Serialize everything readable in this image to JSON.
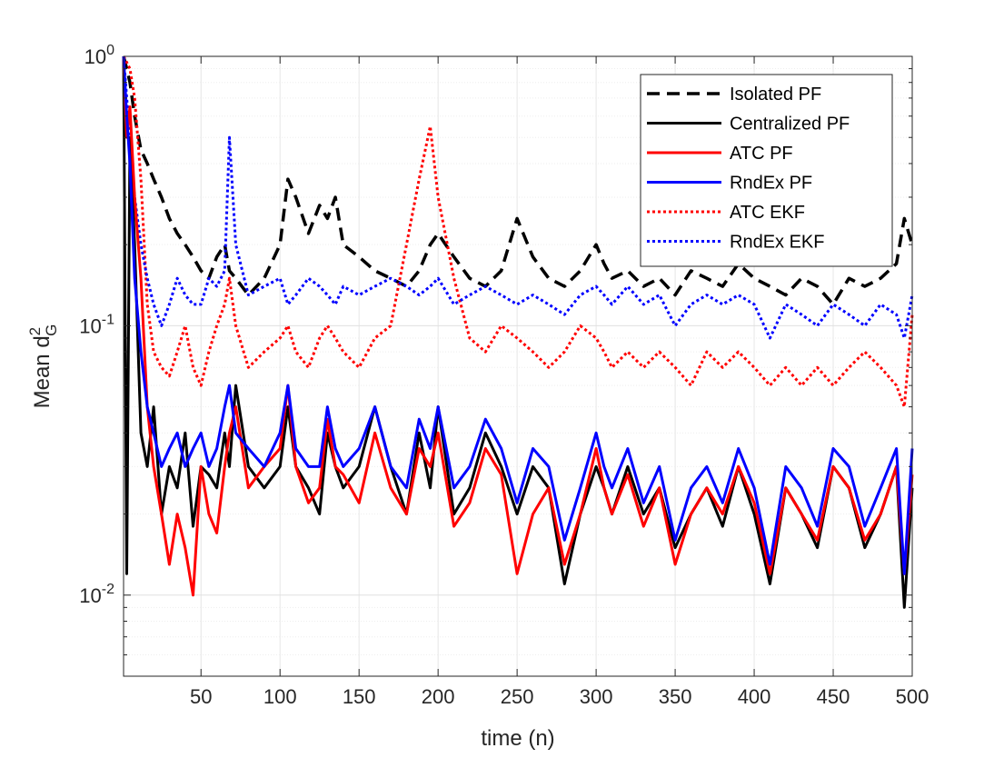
{
  "chart_data": {
    "type": "line",
    "title": "",
    "xlabel": "time (n)",
    "ylabel": "Mean d",
    "ylabel_superscript": "2",
    "ylabel_subscript": "G",
    "yscale": "log",
    "xlim": [
      1,
      500
    ],
    "ylim": [
      0.005,
      1
    ],
    "grid": true,
    "x_ticks": [
      50,
      100,
      150,
      200,
      250,
      300,
      350,
      400,
      450,
      500
    ],
    "x_tick_labels": [
      "50",
      "100",
      "150",
      "200",
      "250",
      "300",
      "350",
      "400",
      "450",
      "500"
    ],
    "y_ticks": [
      0.01,
      0.1,
      1
    ],
    "y_tick_bases": [
      "10",
      "10",
      "10"
    ],
    "y_tick_exponents": [
      "-2",
      "-1",
      "0"
    ],
    "legend_location": "top-right",
    "x": [
      1,
      3,
      5,
      8,
      12,
      16,
      20,
      25,
      30,
      35,
      40,
      45,
      50,
      55,
      60,
      65,
      68,
      72,
      80,
      90,
      100,
      105,
      110,
      118,
      125,
      130,
      135,
      140,
      150,
      160,
      170,
      180,
      188,
      195,
      200,
      210,
      220,
      230,
      240,
      250,
      260,
      270,
      280,
      290,
      300,
      305,
      310,
      320,
      330,
      340,
      350,
      360,
      370,
      380,
      390,
      400,
      410,
      420,
      430,
      440,
      450,
      460,
      470,
      480,
      490,
      495,
      500
    ],
    "series": [
      {
        "name": "Isolated PF",
        "color": "#000000",
        "style": "dashed",
        "values": [
          1.0,
          0.9,
          0.8,
          0.6,
          0.45,
          0.4,
          0.35,
          0.3,
          0.25,
          0.22,
          0.2,
          0.18,
          0.16,
          0.15,
          0.18,
          0.2,
          0.16,
          0.15,
          0.13,
          0.15,
          0.2,
          0.35,
          0.3,
          0.22,
          0.28,
          0.25,
          0.3,
          0.2,
          0.18,
          0.16,
          0.15,
          0.14,
          0.16,
          0.2,
          0.22,
          0.18,
          0.15,
          0.14,
          0.16,
          0.25,
          0.18,
          0.15,
          0.14,
          0.16,
          0.2,
          0.17,
          0.15,
          0.16,
          0.14,
          0.15,
          0.13,
          0.16,
          0.15,
          0.14,
          0.17,
          0.15,
          0.14,
          0.13,
          0.15,
          0.14,
          0.12,
          0.15,
          0.14,
          0.15,
          0.17,
          0.25,
          0.2
        ]
      },
      {
        "name": "Centralized PF",
        "color": "#000000",
        "style": "solid",
        "values": [
          1.0,
          0.012,
          0.5,
          0.2,
          0.04,
          0.03,
          0.05,
          0.02,
          0.03,
          0.025,
          0.04,
          0.018,
          0.03,
          0.028,
          0.025,
          0.04,
          0.03,
          0.06,
          0.03,
          0.025,
          0.03,
          0.05,
          0.03,
          0.025,
          0.02,
          0.04,
          0.03,
          0.025,
          0.03,
          0.05,
          0.03,
          0.02,
          0.04,
          0.025,
          0.05,
          0.02,
          0.025,
          0.04,
          0.03,
          0.02,
          0.03,
          0.025,
          0.011,
          0.02,
          0.03,
          0.025,
          0.02,
          0.03,
          0.02,
          0.025,
          0.015,
          0.02,
          0.025,
          0.018,
          0.03,
          0.02,
          0.011,
          0.025,
          0.02,
          0.015,
          0.03,
          0.025,
          0.015,
          0.02,
          0.03,
          0.009,
          0.025
        ]
      },
      {
        "name": "ATC PF",
        "color": "#ff0000",
        "style": "solid",
        "values": [
          1.0,
          0.5,
          0.65,
          0.3,
          0.15,
          0.05,
          0.03,
          0.02,
          0.013,
          0.02,
          0.015,
          0.01,
          0.03,
          0.02,
          0.017,
          0.03,
          0.04,
          0.05,
          0.025,
          0.03,
          0.035,
          0.06,
          0.03,
          0.022,
          0.025,
          0.045,
          0.03,
          0.028,
          0.022,
          0.04,
          0.025,
          0.02,
          0.035,
          0.03,
          0.04,
          0.018,
          0.022,
          0.035,
          0.028,
          0.012,
          0.02,
          0.025,
          0.013,
          0.02,
          0.035,
          0.025,
          0.02,
          0.028,
          0.018,
          0.025,
          0.013,
          0.02,
          0.025,
          0.02,
          0.03,
          0.022,
          0.012,
          0.025,
          0.02,
          0.016,
          0.03,
          0.025,
          0.016,
          0.02,
          0.03,
          0.012,
          0.028
        ]
      },
      {
        "name": "RndEx PF",
        "color": "#0000ff",
        "style": "solid",
        "values": [
          1.0,
          0.6,
          0.4,
          0.15,
          0.08,
          0.05,
          0.04,
          0.03,
          0.035,
          0.04,
          0.03,
          0.035,
          0.04,
          0.03,
          0.035,
          0.05,
          0.06,
          0.04,
          0.035,
          0.03,
          0.04,
          0.06,
          0.035,
          0.03,
          0.03,
          0.05,
          0.035,
          0.03,
          0.035,
          0.05,
          0.03,
          0.025,
          0.045,
          0.035,
          0.05,
          0.025,
          0.03,
          0.045,
          0.035,
          0.022,
          0.035,
          0.03,
          0.016,
          0.025,
          0.04,
          0.03,
          0.025,
          0.035,
          0.022,
          0.03,
          0.016,
          0.025,
          0.03,
          0.022,
          0.035,
          0.025,
          0.013,
          0.03,
          0.025,
          0.018,
          0.035,
          0.03,
          0.018,
          0.025,
          0.035,
          0.012,
          0.035
        ]
      },
      {
        "name": "ATC EKF",
        "color": "#ff0000",
        "style": "dotted",
        "values": [
          1.0,
          0.95,
          0.9,
          0.7,
          0.35,
          0.12,
          0.08,
          0.07,
          0.065,
          0.08,
          0.1,
          0.07,
          0.06,
          0.08,
          0.1,
          0.12,
          0.15,
          0.1,
          0.07,
          0.08,
          0.09,
          0.1,
          0.08,
          0.07,
          0.09,
          0.1,
          0.09,
          0.08,
          0.07,
          0.09,
          0.1,
          0.2,
          0.35,
          0.55,
          0.3,
          0.15,
          0.09,
          0.08,
          0.1,
          0.09,
          0.08,
          0.07,
          0.08,
          0.1,
          0.09,
          0.08,
          0.07,
          0.08,
          0.07,
          0.08,
          0.07,
          0.06,
          0.08,
          0.07,
          0.08,
          0.07,
          0.06,
          0.07,
          0.06,
          0.07,
          0.06,
          0.07,
          0.08,
          0.07,
          0.06,
          0.05,
          0.11
        ]
      },
      {
        "name": "RndEx EKF",
        "color": "#0000ff",
        "style": "dotted",
        "values": [
          1.0,
          0.7,
          0.5,
          0.3,
          0.2,
          0.15,
          0.12,
          0.1,
          0.12,
          0.15,
          0.13,
          0.12,
          0.12,
          0.15,
          0.14,
          0.16,
          0.5,
          0.2,
          0.13,
          0.14,
          0.15,
          0.12,
          0.13,
          0.15,
          0.14,
          0.13,
          0.12,
          0.14,
          0.13,
          0.14,
          0.15,
          0.14,
          0.13,
          0.14,
          0.15,
          0.12,
          0.13,
          0.14,
          0.13,
          0.12,
          0.13,
          0.12,
          0.11,
          0.13,
          0.14,
          0.13,
          0.12,
          0.14,
          0.12,
          0.13,
          0.1,
          0.12,
          0.13,
          0.12,
          0.13,
          0.12,
          0.09,
          0.12,
          0.11,
          0.1,
          0.12,
          0.11,
          0.1,
          0.12,
          0.11,
          0.09,
          0.13
        ]
      }
    ]
  }
}
